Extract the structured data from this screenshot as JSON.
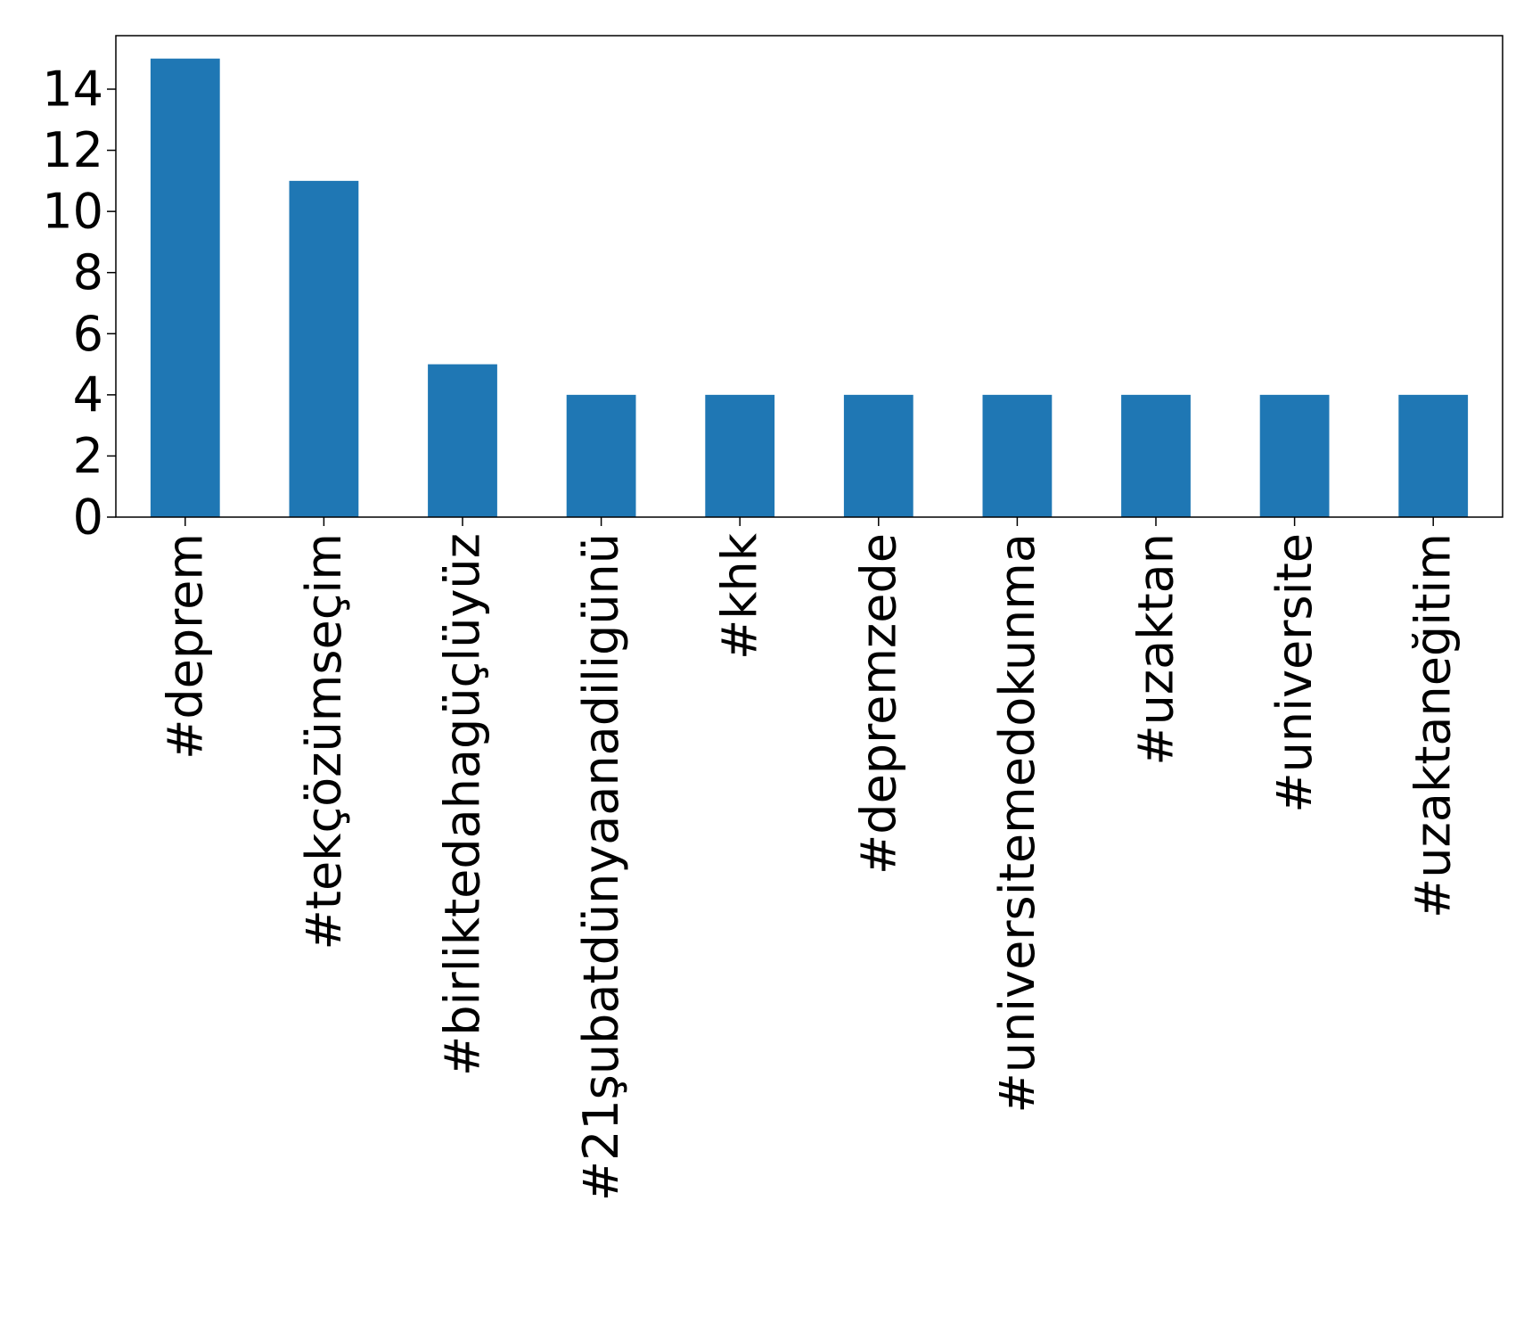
{
  "chart_data": {
    "type": "bar",
    "title": "",
    "xlabel": "",
    "ylabel": "",
    "categories": [
      "#deprem",
      "#tekçözümseçim",
      "#birliktedahagüçlüyüz",
      "#21şubatdünyaanadiligünü",
      "#khk",
      "#depremzede",
      "#universitemedokunma",
      "#uzaktan",
      "#universite",
      "#uzaktaneğitim"
    ],
    "values": [
      15,
      11,
      5,
      4,
      4,
      4,
      4,
      4,
      4,
      4
    ],
    "yticks": [
      0,
      2,
      4,
      6,
      8,
      10,
      12,
      14
    ],
    "ylim": [
      0,
      15.75
    ],
    "grid": false,
    "legend": "none",
    "bar_color": "#1f77b4"
  }
}
